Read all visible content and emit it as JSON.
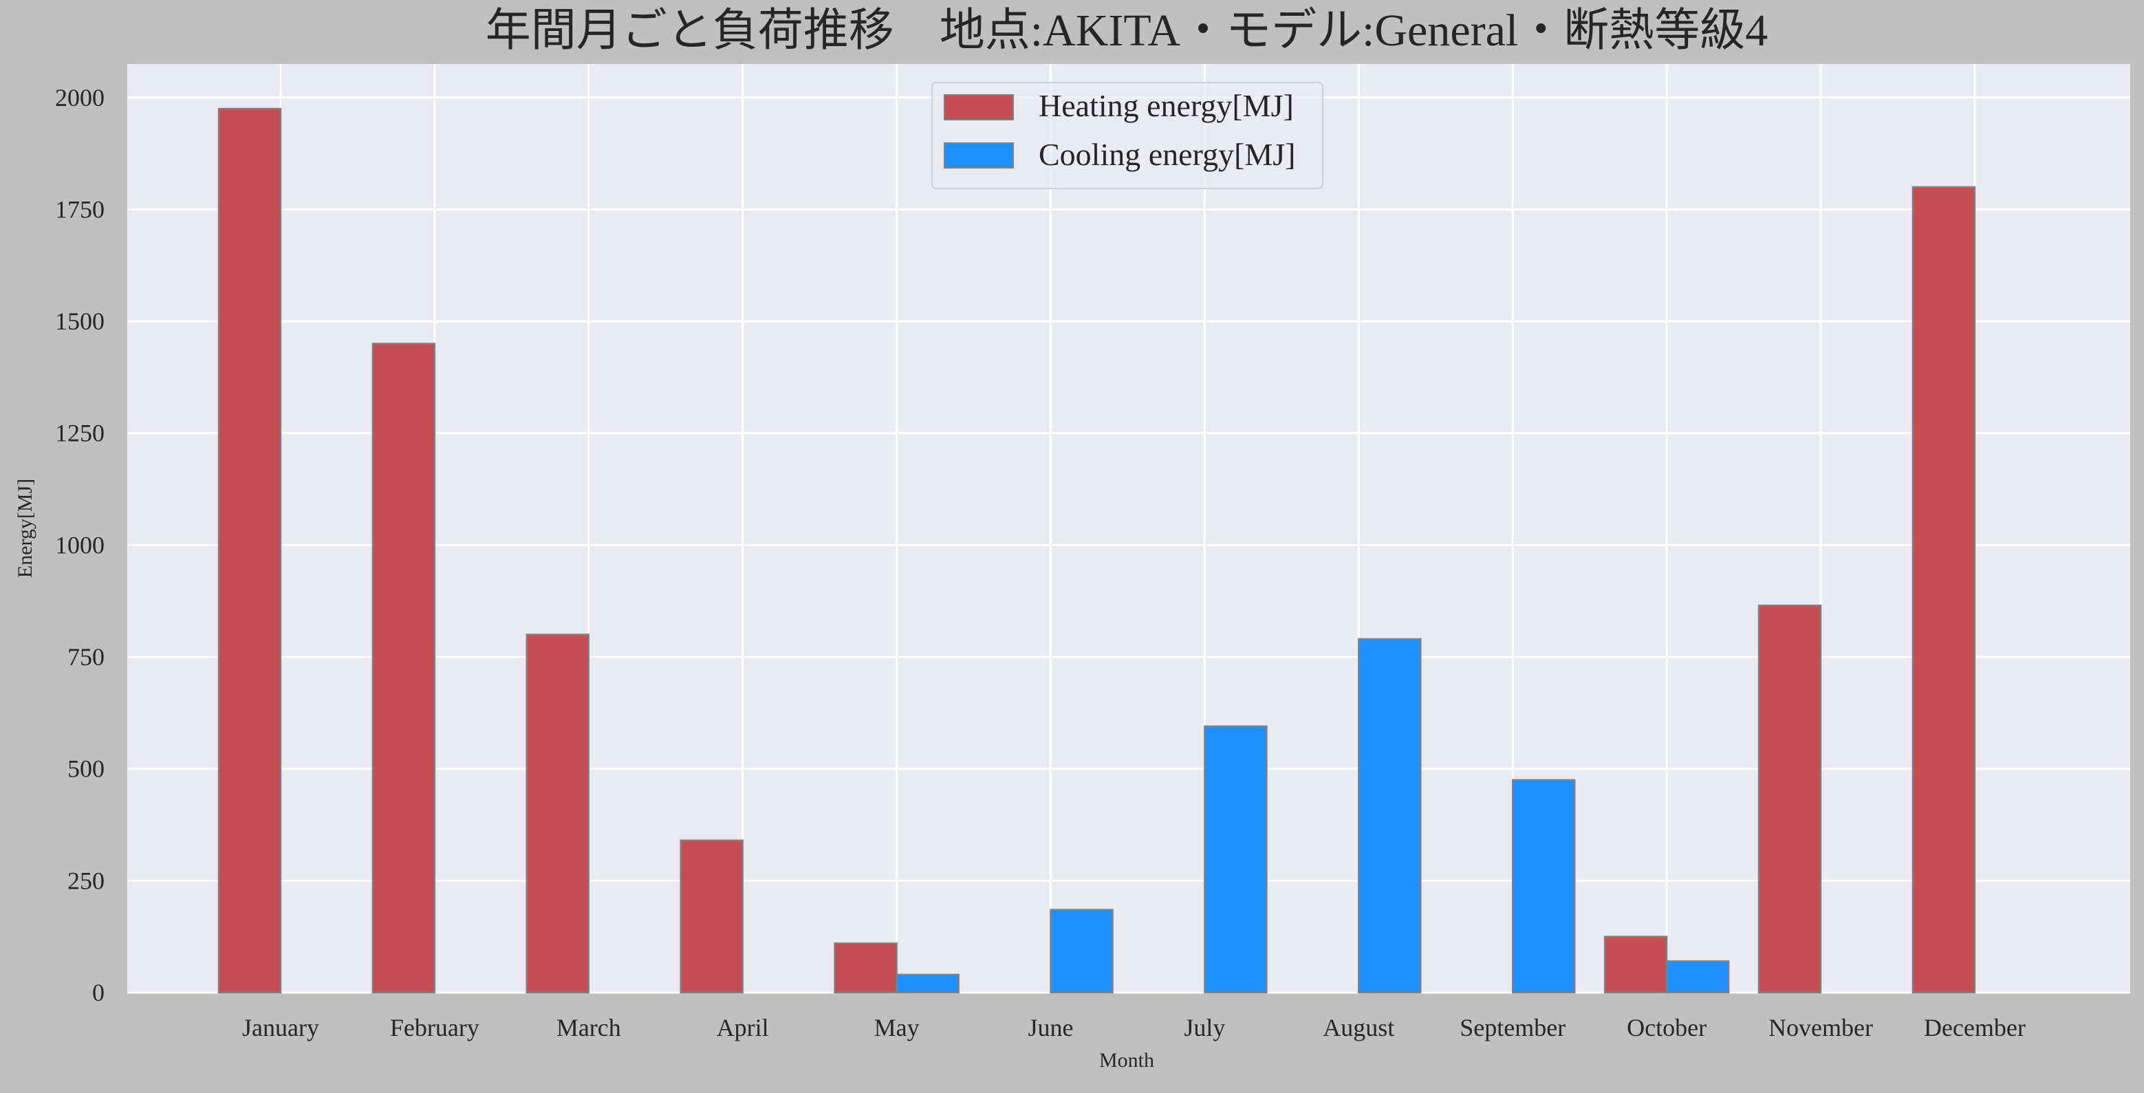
{
  "chart_data": {
    "type": "bar",
    "title": "年間月ごと負荷推移　地点:AKITA・モデル:General・断熱等級4",
    "xlabel": "Month",
    "ylabel": "Energy[MJ]",
    "ylim": [
      0,
      2075
    ],
    "yticks": [
      0,
      250,
      500,
      750,
      1000,
      1250,
      1500,
      1750,
      2000
    ],
    "grid": true,
    "legend_position": "top-center",
    "categories": [
      "January",
      "February",
      "March",
      "April",
      "May",
      "June",
      "July",
      "August",
      "September",
      "October",
      "November",
      "December"
    ],
    "series": [
      {
        "name": "Heating energy[MJ]",
        "color": "#c44e52",
        "values": [
          1975,
          1450,
          800,
          340,
          110,
          0,
          0,
          0,
          0,
          125,
          865,
          1800
        ]
      },
      {
        "name": "Cooling energy[MJ]",
        "color": "#1e90ff",
        "values": [
          0,
          0,
          0,
          0,
          40,
          185,
          595,
          790,
          475,
          70,
          0,
          0
        ]
      }
    ]
  },
  "colors": {
    "figure_background": "#c0c0c0",
    "plot_background": "#eaeaf2",
    "grid": "#ffffff",
    "bar_edge": "#808080"
  }
}
